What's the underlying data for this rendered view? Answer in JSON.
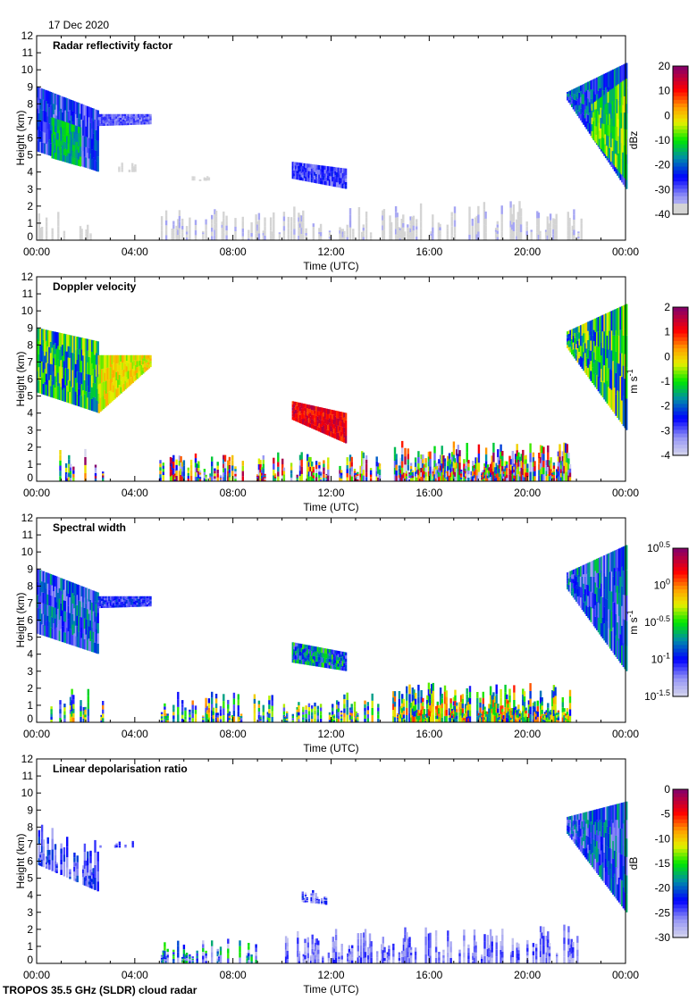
{
  "date_label": "17 Dec 2020",
  "footer": "TROPOS 35.5 GHz (SLDR) cloud radar",
  "chart_data": [
    {
      "type": "heatmap",
      "title": "Radar reflectivity factor",
      "xlabel": "Time (UTC)",
      "ylabel": "Height (km)",
      "xlim": [
        0,
        24
      ],
      "ylim": [
        0,
        12
      ],
      "xticks": [
        "00:00",
        "04:00",
        "08:00",
        "12:00",
        "16:00",
        "20:00",
        "00:00"
      ],
      "yticks": [
        0,
        1,
        2,
        3,
        4,
        5,
        6,
        7,
        8,
        9,
        10,
        11,
        12
      ],
      "colorbar": {
        "label": "dBz",
        "sup": "",
        "min": -40,
        "max": 20,
        "ticks": [
          "20",
          "10",
          "0",
          "-10",
          "-20",
          "-30",
          "-40"
        ],
        "scale": "linear"
      },
      "regions": [
        {
          "t": [
            0,
            2.5
          ],
          "top": [
            9,
            7.6
          ],
          "bottom": [
            5.2,
            4
          ],
          "value": -26,
          "spread": 8
        },
        {
          "t": [
            0.6,
            1.8
          ],
          "top": [
            7.2,
            6.6
          ],
          "bottom": [
            4.8,
            4.3
          ],
          "value": -14,
          "spread": 5
        },
        {
          "t": [
            2.5,
            4.6
          ],
          "top": [
            7.4,
            7.4
          ],
          "bottom": [
            6.7,
            6.8
          ],
          "value": -30,
          "spread": 4
        },
        {
          "t": [
            10.4,
            12.6
          ],
          "top": [
            4.6,
            4.2
          ],
          "bottom": [
            3.6,
            3
          ],
          "value": -28,
          "spread": 5
        },
        {
          "t": [
            21.6,
            24
          ],
          "top": [
            8.7,
            10.4
          ],
          "bottom": [
            8.2,
            3
          ],
          "value": -22,
          "spread": 8
        },
        {
          "t": [
            22.6,
            24
          ],
          "top": [
            8,
            9.5
          ],
          "bottom": [
            6,
            3.5
          ],
          "value": -10,
          "spread": 8
        },
        {
          "t": [
            0,
            2.2
          ],
          "top": [
            1.9,
            1.9
          ],
          "bottom": [
            0,
            0
          ],
          "value": -38,
          "spread": 1,
          "density": 0.35
        },
        {
          "t": [
            5,
            22.2
          ],
          "top": [
            1.8,
            2.4
          ],
          "bottom": [
            0,
            0
          ],
          "value": -37,
          "spread": 3,
          "density": 0.45
        },
        {
          "t": [
            3.2,
            4
          ],
          "top": [
            4.6,
            4.6
          ],
          "bottom": [
            4,
            4
          ],
          "value": -38,
          "spread": 1,
          "density": 0.6
        },
        {
          "t": [
            6.2,
            7
          ],
          "top": [
            3.8,
            3.8
          ],
          "bottom": [
            3.5,
            3.5
          ],
          "value": -38,
          "spread": 1,
          "density": 0.6
        }
      ]
    },
    {
      "type": "heatmap",
      "title": "Doppler velocity",
      "xlabel": "Time (UTC)",
      "ylabel": "Height (km)",
      "xlim": [
        0,
        24
      ],
      "ylim": [
        0,
        12
      ],
      "xticks": [
        "00:00",
        "04:00",
        "08:00",
        "12:00",
        "16:00",
        "20:00",
        "00:00"
      ],
      "yticks": [
        0,
        1,
        2,
        3,
        4,
        5,
        6,
        7,
        8,
        9,
        10,
        11,
        12
      ],
      "colorbar": {
        "label": "m s",
        "sup": "-1",
        "min": -4,
        "max": 2,
        "ticks": [
          "2",
          "1",
          "0",
          "-1",
          "-2",
          "-3",
          "-4"
        ],
        "scale": "linear"
      },
      "regions": [
        {
          "t": [
            0,
            2.5
          ],
          "top": [
            9,
            8.2
          ],
          "bottom": [
            5.2,
            4
          ],
          "value": -1.3,
          "spread": 1.2
        },
        {
          "t": [
            2.5,
            4.6
          ],
          "top": [
            7.4,
            7.4
          ],
          "bottom": [
            4,
            6.7
          ],
          "value": -0.2,
          "spread": 0.5
        },
        {
          "t": [
            10.4,
            12.6
          ],
          "top": [
            4.7,
            4
          ],
          "bottom": [
            3.6,
            2.2
          ],
          "value": 1.2,
          "spread": 0.5
        },
        {
          "t": [
            21.6,
            24
          ],
          "top": [
            8.8,
            10.4
          ],
          "bottom": [
            7.8,
            3
          ],
          "value": -1.3,
          "spread": 1.3
        },
        {
          "t": [
            0.5,
            2.8
          ],
          "top": [
            2,
            2
          ],
          "bottom": [
            0,
            0
          ],
          "value": -1,
          "spread": 3,
          "density": 0.3
        },
        {
          "t": [
            5,
            14
          ],
          "top": [
            1.6,
            1.8
          ],
          "bottom": [
            0,
            0
          ],
          "value": -1,
          "spread": 3,
          "density": 0.45
        },
        {
          "t": [
            14.5,
            21.7
          ],
          "top": [
            2.4,
            2.3
          ],
          "bottom": [
            0,
            0
          ],
          "value": -1,
          "spread": 3,
          "density": 0.85
        }
      ]
    },
    {
      "type": "heatmap",
      "title": "Spectral width",
      "xlabel": "Time (UTC)",
      "ylabel": "Height (km)",
      "xlim": [
        0,
        24
      ],
      "ylim": [
        0,
        12
      ],
      "xticks": [
        "00:00",
        "04:00",
        "08:00",
        "12:00",
        "16:00",
        "20:00",
        "00:00"
      ],
      "yticks": [
        0,
        1,
        2,
        3,
        4,
        5,
        6,
        7,
        8,
        9,
        10,
        11,
        12
      ],
      "colorbar": {
        "label": "m s",
        "sup": "-1",
        "min": -1.5,
        "max": 0.5,
        "ticks": [
          "10^0.5",
          "10^0",
          "10^-0.5",
          "10^-1",
          "10^-1.5"
        ],
        "scale": "log10"
      },
      "regions": [
        {
          "t": [
            0,
            2.5
          ],
          "top": [
            9,
            7.6
          ],
          "bottom": [
            5.2,
            4
          ],
          "value": -0.95,
          "spread": 0.35
        },
        {
          "t": [
            2.5,
            4.6
          ],
          "top": [
            7.4,
            7.4
          ],
          "bottom": [
            6.7,
            6.8
          ],
          "value": -1.05,
          "spread": 0.2
        },
        {
          "t": [
            10.4,
            12.6
          ],
          "top": [
            4.7,
            4.1
          ],
          "bottom": [
            3.5,
            3
          ],
          "value": -0.8,
          "spread": 0.4
        },
        {
          "t": [
            21.6,
            24
          ],
          "top": [
            8.8,
            10.4
          ],
          "bottom": [
            7.8,
            3
          ],
          "value": -0.95,
          "spread": 0.4
        },
        {
          "t": [
            0.5,
            2.8
          ],
          "top": [
            2,
            2
          ],
          "bottom": [
            0,
            0
          ],
          "value": -0.6,
          "spread": 0.6,
          "density": 0.3
        },
        {
          "t": [
            5,
            14
          ],
          "top": [
            1.8,
            1.8
          ],
          "bottom": [
            0,
            0
          ],
          "value": -0.6,
          "spread": 0.6,
          "density": 0.45
        },
        {
          "t": [
            14.5,
            21.7
          ],
          "top": [
            2.4,
            2.3
          ],
          "bottom": [
            0,
            0
          ],
          "value": -0.45,
          "spread": 0.6,
          "density": 0.85
        }
      ]
    },
    {
      "type": "heatmap",
      "title": "Linear depolarisation ratio",
      "xlabel": "Time (UTC)",
      "ylabel": "Height (km)",
      "xlim": [
        0,
        24
      ],
      "ylim": [
        0,
        12
      ],
      "xticks": [
        "00:00",
        "04:00",
        "08:00",
        "12:00",
        "16:00",
        "20:00",
        "00:00"
      ],
      "yticks": [
        0,
        1,
        2,
        3,
        4,
        5,
        6,
        7,
        8,
        9,
        10,
        11,
        12
      ],
      "colorbar": {
        "label": "dB",
        "sup": "",
        "min": -30,
        "max": 0,
        "ticks": [
          "0",
          "-5",
          "-10",
          "-15",
          "-20",
          "-25",
          "-30"
        ],
        "scale": "linear"
      },
      "regions": [
        {
          "t": [
            0,
            2.5
          ],
          "top": [
            8.3,
            7.2
          ],
          "bottom": [
            5.8,
            4.2
          ],
          "value": -24,
          "spread": 4,
          "density": 0.7
        },
        {
          "t": [
            2.5,
            4
          ],
          "top": [
            7.2,
            7.2
          ],
          "bottom": [
            6.8,
            6.8
          ],
          "value": -25,
          "spread": 3,
          "density": 0.4
        },
        {
          "t": [
            10.8,
            12
          ],
          "top": [
            4.4,
            4.2
          ],
          "bottom": [
            3.6,
            3.4
          ],
          "value": -25,
          "spread": 4,
          "density": 0.6
        },
        {
          "t": [
            21.6,
            24
          ],
          "top": [
            8.6,
            9.5
          ],
          "bottom": [
            7.6,
            3
          ],
          "value": -22,
          "spread": 5
        },
        {
          "t": [
            5,
            9
          ],
          "top": [
            1.5,
            1.5
          ],
          "bottom": [
            0,
            0
          ],
          "value": -22,
          "spread": 8,
          "density": 0.3
        },
        {
          "t": [
            10,
            22
          ],
          "top": [
            2,
            2.3
          ],
          "bottom": [
            0,
            0
          ],
          "value": -26,
          "spread": 3,
          "density": 0.55
        }
      ]
    }
  ]
}
